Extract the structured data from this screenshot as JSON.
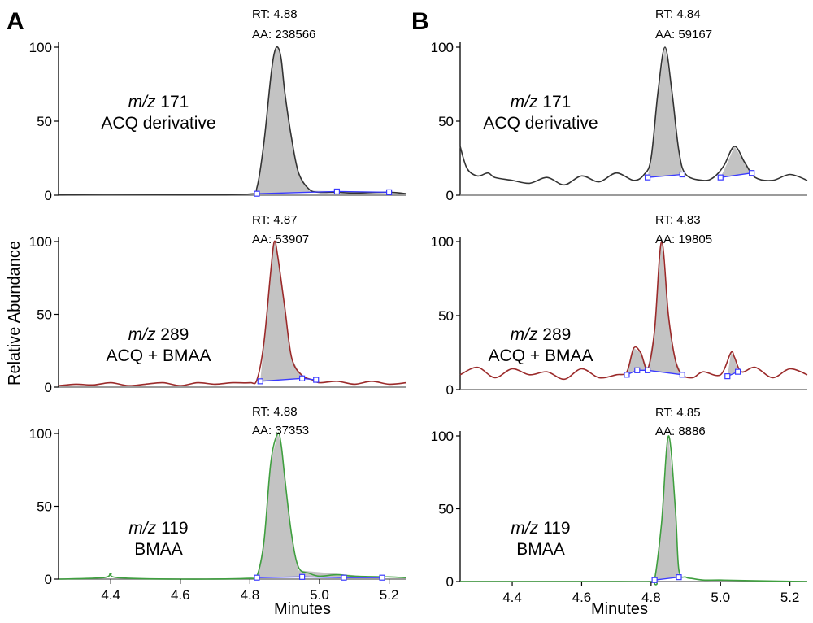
{
  "chart_data": {
    "type": "line",
    "panel_letters": [
      "A",
      "B"
    ],
    "xlabel": "Minutes",
    "ylabel": "Relative Abundance",
    "panels": [
      {
        "panel": "A",
        "xlim": [
          4.25,
          5.25
        ],
        "xticks": [
          "4.4",
          "4.6",
          "4.8",
          "5.0",
          "5.2"
        ],
        "x_shown": [
          4.4,
          4.6,
          4.8,
          5.0,
          5.2
        ],
        "traces": [
          {
            "mz_prefix": "m/z",
            "mz": "171",
            "compound": "ACQ derivative",
            "rt_label": "RT: 4.88",
            "aa_label": "AA: 238566",
            "line_color": "#333333",
            "yticks": [
              "0",
              "50",
              "100"
            ],
            "ylim": [
              0,
              100
            ],
            "x": [
              4.25,
              4.4,
              4.6,
              4.8,
              4.82,
              4.84,
              4.86,
              4.87,
              4.88,
              4.89,
              4.9,
              4.92,
              4.94,
              4.97,
              5.0,
              5.05,
              5.1,
              5.2,
              5.25
            ],
            "y": [
              0.3,
              0.6,
              0.4,
              0.8,
              5,
              35,
              80,
              96,
              100,
              92,
              70,
              38,
              15,
              4,
              2,
              2,
              1.5,
              2,
              1
            ],
            "peak_x": [
              4.82,
              4.84,
              4.86,
              4.87,
              4.88,
              4.89,
              4.9,
              4.92,
              4.94,
              4.97
            ],
            "peak_y": [
              1,
              35,
              80,
              96,
              100,
              92,
              70,
              38,
              15,
              3
            ],
            "baseline": [
              [
                4.82,
                1
              ],
              [
                5.05,
                2.5
              ],
              [
                5.2,
                2
              ]
            ]
          },
          {
            "mz_prefix": "m/z",
            "mz": "289",
            "compound": "ACQ + BMAA",
            "rt_label": "RT: 4.87",
            "aa_label": "AA: 53907",
            "line_color": "#9b2a2a",
            "yticks": [
              "0",
              "50",
              "100"
            ],
            "ylim": [
              0,
              100
            ],
            "x": [
              4.25,
              4.3,
              4.35,
              4.4,
              4.45,
              4.5,
              4.55,
              4.6,
              4.65,
              4.7,
              4.75,
              4.8,
              4.82,
              4.84,
              4.86,
              4.87,
              4.88,
              4.9,
              4.92,
              4.95,
              4.98,
              5.0,
              5.05,
              5.1,
              5.15,
              5.2,
              5.25
            ],
            "y": [
              1,
              2,
              1.5,
              3,
              1,
              2,
              3,
              1,
              3,
              2,
              3,
              3,
              5,
              30,
              80,
              100,
              90,
              55,
              20,
              8,
              5,
              3,
              4,
              2,
              4,
              2,
              3
            ],
            "peak_x": [
              4.83,
              4.84,
              4.86,
              4.87,
              4.88,
              4.9,
              4.92,
              4.95
            ],
            "peak_y": [
              4,
              30,
              80,
              100,
              90,
              55,
              20,
              6
            ],
            "baseline": [
              [
                4.83,
                4
              ],
              [
                4.95,
                6
              ],
              [
                4.99,
                5
              ]
            ]
          },
          {
            "mz_prefix": "m/z",
            "mz": "119",
            "compound": "BMAA",
            "rt_label": "RT: 4.88",
            "aa_label": "AA: 37353",
            "line_color": "#3f9f3f",
            "yticks": [
              "0",
              "50",
              "100"
            ],
            "ylim": [
              0,
              100
            ],
            "x": [
              4.25,
              4.38,
              4.4,
              4.42,
              4.6,
              4.8,
              4.82,
              4.84,
              4.86,
              4.88,
              4.89,
              4.9,
              4.92,
              4.94,
              4.97,
              5.0,
              5.05,
              5.1,
              5.2,
              5.25
            ],
            "y": [
              0,
              1,
              4,
              1,
              0,
              0.5,
              2,
              25,
              80,
              100,
              92,
              70,
              30,
              8,
              4,
              2,
              3,
              2,
              1.5,
              1
            ],
            "peak_x": [
              4.82,
              4.84,
              4.86,
              4.88,
              4.89,
              4.9,
              4.92,
              4.94
            ],
            "peak_y": [
              1,
              25,
              80,
              100,
              92,
              70,
              30,
              6
            ],
            "baseline": [
              [
                4.82,
                1
              ],
              [
                4.95,
                1.5
              ],
              [
                5.07,
                1
              ],
              [
                5.18,
                1
              ]
            ]
          }
        ]
      },
      {
        "panel": "B",
        "xlim": [
          4.25,
          5.25
        ],
        "xticks": [
          "4.4",
          "4.6",
          "4.8",
          "5.0",
          "5.2"
        ],
        "x_shown": [
          4.4,
          4.6,
          4.8,
          5.0,
          5.2
        ],
        "traces": [
          {
            "mz_prefix": "m/z",
            "mz": "171",
            "compound": "ACQ derivative",
            "rt_label": "RT: 4.84",
            "aa_label": "AA: 59167",
            "line_color": "#333333",
            "yticks": [
              "0",
              "50",
              "100"
            ],
            "ylim": [
              0,
              100
            ],
            "x": [
              4.25,
              4.27,
              4.3,
              4.33,
              4.35,
              4.4,
              4.45,
              4.5,
              4.55,
              4.6,
              4.65,
              4.7,
              4.75,
              4.78,
              4.8,
              4.82,
              4.84,
              4.86,
              4.88,
              4.9,
              4.95,
              4.98,
              5.01,
              5.04,
              5.07,
              5.1,
              5.15,
              5.2,
              5.25
            ],
            "y": [
              33,
              18,
              13,
              15,
              12,
              10,
              8,
              12,
              7,
              13,
              9,
              15,
              10,
              14,
              25,
              70,
              100,
              70,
              30,
              14,
              10,
              12,
              20,
              33,
              22,
              12,
              10,
              14,
              10
            ],
            "peak_x": [
              4.79,
              4.8,
              4.82,
              4.84,
              4.86,
              4.88,
              4.89
            ],
            "peak_y": [
              12,
              25,
              70,
              100,
              70,
              30,
              14
            ],
            "baseline": [
              [
                4.79,
                12
              ],
              [
                4.89,
                14
              ]
            ],
            "peak2_x": [
              5.0,
              5.02,
              5.04,
              5.07,
              5.09
            ],
            "peak2_y": [
              12,
              22,
              33,
              22,
              15
            ],
            "baseline2": [
              [
                5.0,
                12
              ],
              [
                5.09,
                15
              ]
            ]
          },
          {
            "mz_prefix": "m/z",
            "mz": "289",
            "compound": "ACQ + BMAA",
            "rt_label": "RT: 4.83",
            "aa_label": "AA: 19805",
            "line_color": "#9b2a2a",
            "yticks": [
              "0",
              "50",
              "100"
            ],
            "ylim": [
              0,
              100
            ],
            "x": [
              4.25,
              4.3,
              4.35,
              4.4,
              4.45,
              4.5,
              4.55,
              4.6,
              4.65,
              4.7,
              4.73,
              4.75,
              4.77,
              4.79,
              4.81,
              4.83,
              4.85,
              4.87,
              4.89,
              4.92,
              4.95,
              5.0,
              5.03,
              5.04,
              5.06,
              5.1,
              5.15,
              5.2,
              5.25
            ],
            "y": [
              10,
              15,
              8,
              14,
              10,
              12,
              7,
              14,
              8,
              10,
              12,
              28,
              25,
              14,
              40,
              100,
              50,
              20,
              10,
              8,
              12,
              10,
              25,
              22,
              12,
              15,
              8,
              14,
              10
            ],
            "peak_x": [
              4.73,
              4.75,
              4.77,
              4.79,
              4.81,
              4.83,
              4.85,
              4.87,
              4.89
            ],
            "peak_y": [
              10,
              28,
              25,
              14,
              40,
              100,
              50,
              20,
              10
            ],
            "baseline": [
              [
                4.73,
                10
              ],
              [
                4.76,
                13
              ],
              [
                4.79,
                13
              ],
              [
                4.89,
                10
              ]
            ],
            "peak2_x": [
              5.02,
              5.03,
              5.04,
              5.05
            ],
            "peak2_y": [
              9,
              25,
              22,
              12
            ],
            "baseline2": [
              [
                5.02,
                9
              ],
              [
                5.05,
                12
              ]
            ]
          },
          {
            "mz_prefix": "m/z",
            "mz": "119",
            "compound": "BMAA",
            "rt_label": "RT: 4.85",
            "aa_label": "AA: 8886",
            "line_color": "#3f9f3f",
            "yticks": [
              "0",
              "50",
              "100"
            ],
            "ylim": [
              0,
              100
            ],
            "x": [
              4.25,
              4.6,
              4.8,
              4.81,
              4.83,
              4.85,
              4.87,
              4.88,
              4.9,
              4.92,
              4.95,
              5.0,
              5.1,
              5.25
            ],
            "y": [
              0,
              0,
              0,
              1,
              40,
              100,
              50,
              8,
              3,
              2,
              1,
              1,
              0.5,
              0
            ],
            "peak_x": [
              4.81,
              4.83,
              4.85,
              4.87,
              4.88
            ],
            "peak_y": [
              1,
              40,
              100,
              50,
              3
            ],
            "baseline": [
              [
                4.81,
                1
              ],
              [
                4.88,
                3
              ]
            ]
          }
        ]
      }
    ]
  }
}
